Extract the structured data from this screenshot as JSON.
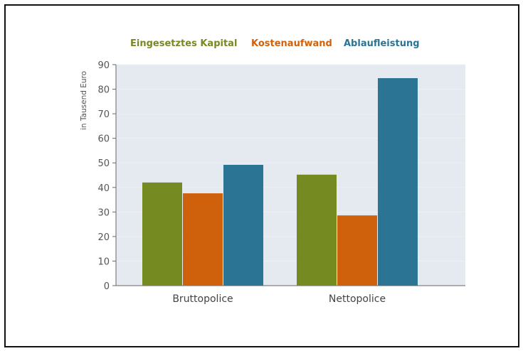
{
  "chart_data": {
    "type": "bar",
    "title": "",
    "xlabel": "",
    "ylabel": "in Tausend Euro",
    "ylim": [
      0,
      90
    ],
    "yticks": [
      0,
      10,
      20,
      30,
      40,
      50,
      60,
      70,
      80,
      90
    ],
    "grid": true,
    "legend_placement": "top",
    "categories": [
      "Bruttopolice",
      "Nettopolice"
    ],
    "series": [
      {
        "name": "Eingesetztes Kapital",
        "color": "#758a20",
        "values": [
          42,
          45.2
        ]
      },
      {
        "name": "Kostenaufwand",
        "color": "#d0610c",
        "values": [
          37.6,
          28.6
        ]
      },
      {
        "name": "Ablaufleistung",
        "color": "#2c7494",
        "values": [
          49.2,
          84.5
        ]
      }
    ]
  }
}
